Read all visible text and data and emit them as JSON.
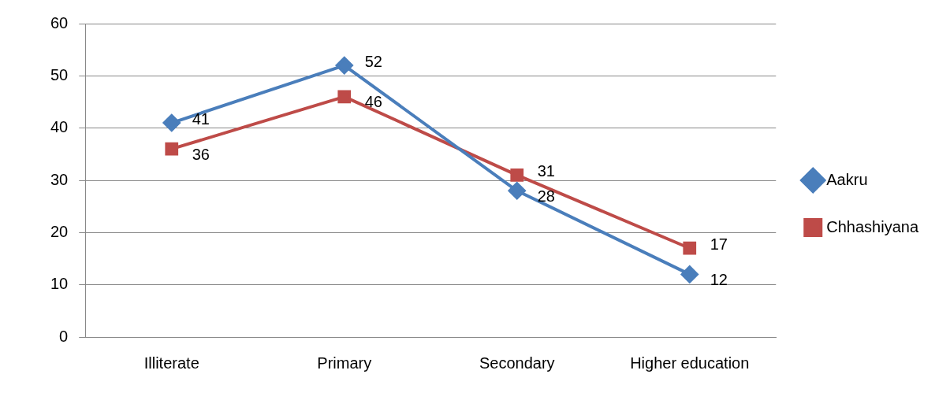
{
  "chart_data": {
    "type": "line",
    "categories": [
      "Illiterate",
      "Primary",
      "Secondary",
      "Higher education"
    ],
    "series": [
      {
        "name": "Aakru",
        "color": "#4a7ebb",
        "values": [
          41,
          52,
          28,
          12
        ],
        "marker": "diamond"
      },
      {
        "name": "Chhashiyana",
        "color": "#be4b48",
        "values": [
          36,
          46,
          31,
          17
        ],
        "marker": "square"
      }
    ],
    "ylim": [
      0,
      60
    ],
    "yticks": [
      0,
      10,
      20,
      30,
      40,
      50,
      60
    ],
    "grid": "y",
    "legend": "right",
    "data_labels": true
  }
}
